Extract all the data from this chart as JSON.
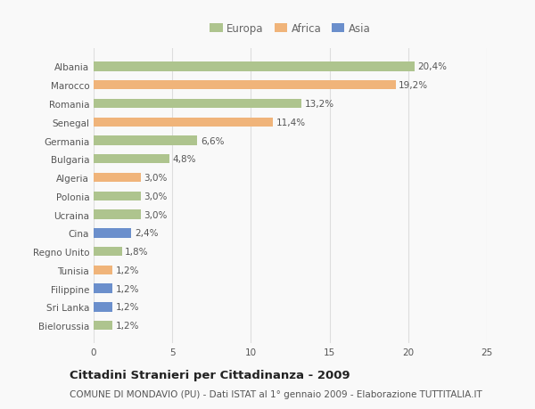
{
  "categories": [
    "Albania",
    "Marocco",
    "Romania",
    "Senegal",
    "Germania",
    "Bulgaria",
    "Algeria",
    "Polonia",
    "Ucraina",
    "Cina",
    "Regno Unito",
    "Tunisia",
    "Filippine",
    "Sri Lanka",
    "Bielorussia"
  ],
  "values": [
    20.4,
    19.2,
    13.2,
    11.4,
    6.6,
    4.8,
    3.0,
    3.0,
    3.0,
    2.4,
    1.8,
    1.2,
    1.2,
    1.2,
    1.2
  ],
  "labels": [
    "20,4%",
    "19,2%",
    "13,2%",
    "11,4%",
    "6,6%",
    "4,8%",
    "3,0%",
    "3,0%",
    "3,0%",
    "2,4%",
    "1,8%",
    "1,2%",
    "1,2%",
    "1,2%",
    "1,2%"
  ],
  "colors": [
    "#aec48e",
    "#f0b47a",
    "#aec48e",
    "#f0b47a",
    "#aec48e",
    "#aec48e",
    "#f0b47a",
    "#aec48e",
    "#aec48e",
    "#6b8fcc",
    "#aec48e",
    "#f0b47a",
    "#6b8fcc",
    "#6b8fcc",
    "#aec48e"
  ],
  "legend_labels": [
    "Europa",
    "Africa",
    "Asia"
  ],
  "legend_colors": [
    "#aec48e",
    "#f0b47a",
    "#6b8fcc"
  ],
  "xlim": [
    0,
    25
  ],
  "xticks": [
    0,
    5,
    10,
    15,
    20,
    25
  ],
  "title": "Cittadini Stranieri per Cittadinanza - 2009",
  "subtitle": "COMUNE DI MONDAVIO (PU) - Dati ISTAT al 1° gennaio 2009 - Elaborazione TUTTITALIA.IT",
  "bg_color": "#f9f9f9",
  "grid_color": "#dddddd",
  "title_fontsize": 9.5,
  "subtitle_fontsize": 7.5,
  "tick_fontsize": 7.5,
  "label_fontsize": 7.5,
  "bar_height": 0.5
}
